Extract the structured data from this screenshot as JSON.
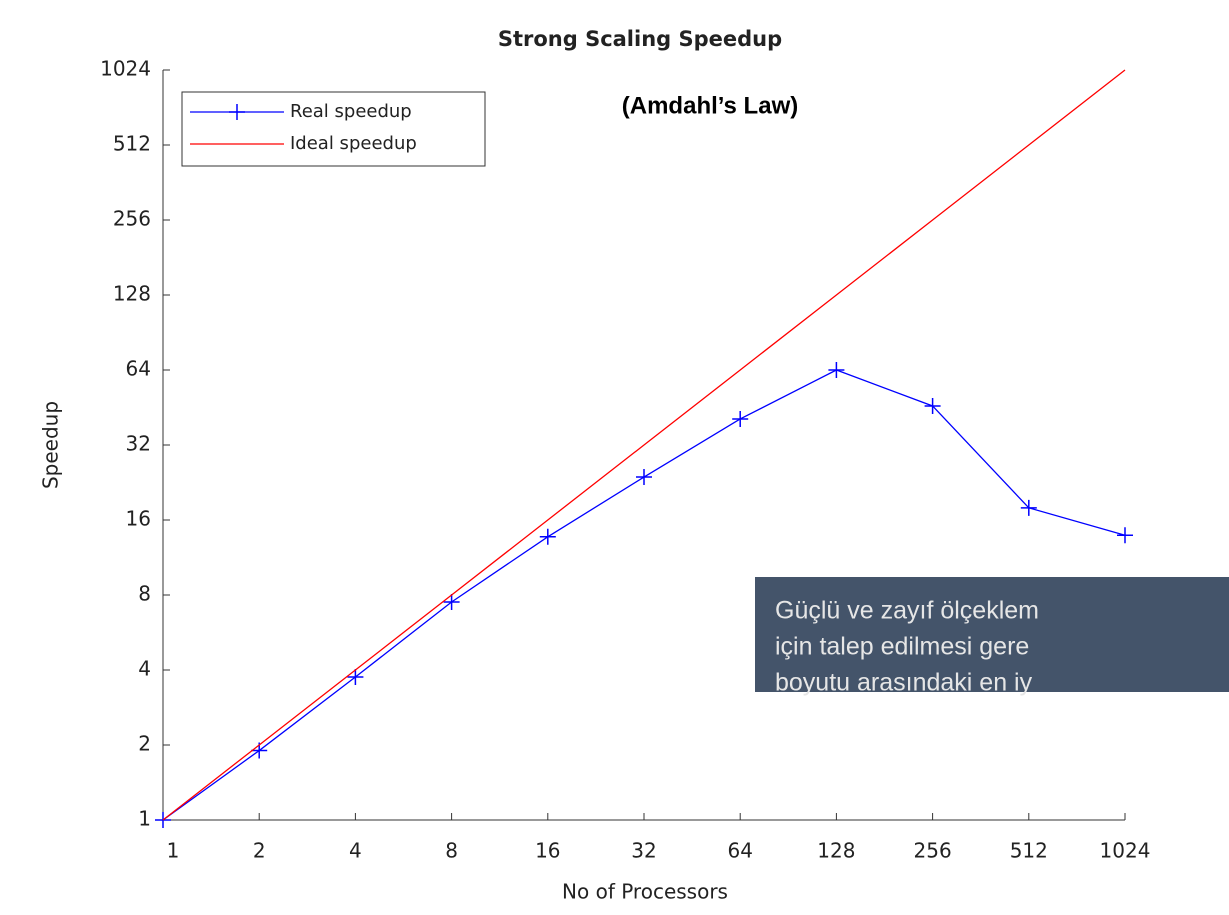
{
  "chart_data": {
    "type": "line",
    "title": "Strong Scaling Speedup",
    "annotation": "(Amdahl’s Law)",
    "xlabel": "No of Processors",
    "ylabel": "Speedup",
    "x": [
      1,
      2,
      4,
      8,
      16,
      32,
      64,
      128,
      256,
      512,
      1024
    ],
    "series": [
      {
        "name": "Real speedup",
        "color": "#0000ff",
        "marker": "+",
        "values": [
          1,
          1.9,
          3.75,
          7.5,
          13.7,
          23.8,
          40.7,
          64,
          45.9,
          17.9,
          13.9
        ]
      },
      {
        "name": "Ideal speedup",
        "color": "#ff0000",
        "values": [
          1,
          2,
          4,
          8,
          16,
          32,
          64,
          128,
          256,
          512,
          1024
        ]
      }
    ],
    "xscale": "log2",
    "yscale": "log2",
    "xlim": [
      1,
      1024
    ],
    "ylim": [
      1,
      1024
    ],
    "xticks": [
      1,
      2,
      4,
      8,
      16,
      32,
      64,
      128,
      256,
      512,
      1024
    ],
    "yticks": [
      1,
      2,
      4,
      8,
      16,
      32,
      64,
      128,
      256,
      512,
      1024
    ],
    "legend": "upper left",
    "grid": false
  },
  "overlay": {
    "lines": [
      "Güçlü ve zayıf ölçeklem",
      "için talep edilmesi gere",
      "boyutu arasındaki en iy"
    ]
  }
}
